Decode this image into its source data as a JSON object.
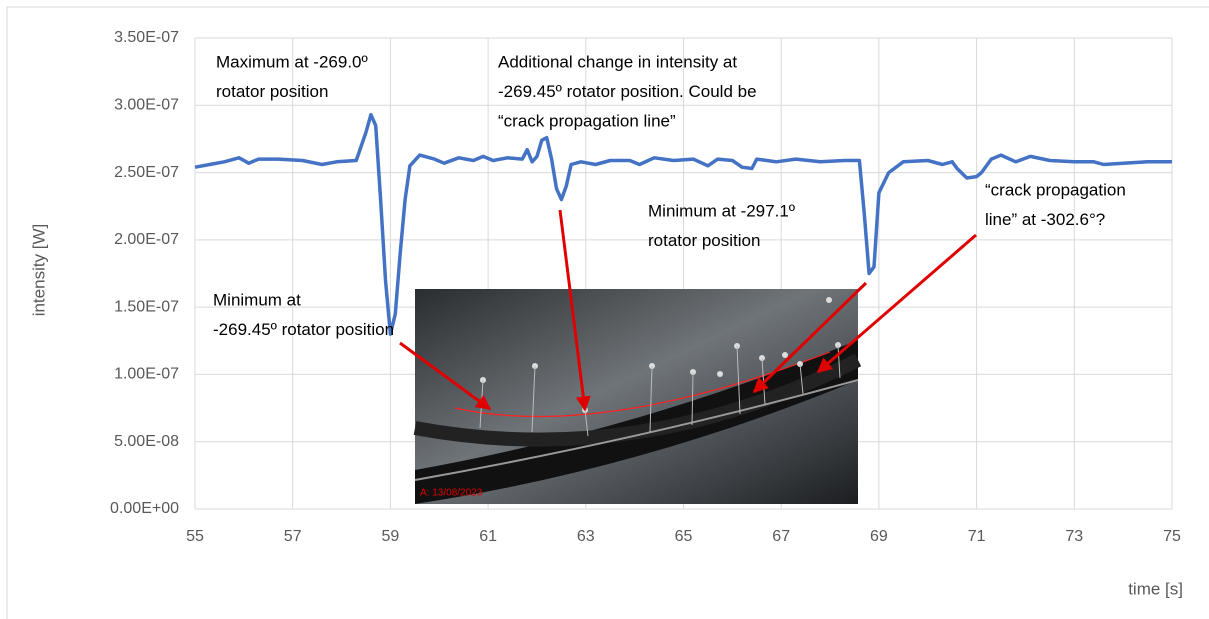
{
  "chart_data": {
    "type": "line",
    "x_label": "time [s]",
    "y_label": "intensity [W]",
    "xlim": [
      55,
      75
    ],
    "xticks": [
      55,
      57,
      59,
      61,
      63,
      65,
      67,
      69,
      71,
      73,
      75
    ],
    "ylim": [
      0,
      3.5e-07
    ],
    "yticks": [
      {
        "value": 0,
        "label": "0.00E+00"
      },
      {
        "value": 5e-08,
        "label": "5.00E-08"
      },
      {
        "value": 1e-07,
        "label": "1.00E-07"
      },
      {
        "value": 1.5e-07,
        "label": "1.50E-07"
      },
      {
        "value": 2e-07,
        "label": "2.00E-07"
      },
      {
        "value": 2.5e-07,
        "label": "2.50E-07"
      },
      {
        "value": 3e-07,
        "label": "3.00E-07"
      },
      {
        "value": 3.5e-07,
        "label": "3.50E-07"
      }
    ],
    "grid": true,
    "series": [
      {
        "color": "#4472c4",
        "x": [
          55,
          55.3,
          55.6,
          55.9,
          56.1,
          56.3,
          56.7,
          57.2,
          57.6,
          57.9,
          58.3,
          58.5,
          58.6,
          58.7,
          58.8,
          58.9,
          59.0,
          59.1,
          59.2,
          59.3,
          59.4,
          59.6,
          59.9,
          60.1,
          60.4,
          60.7,
          60.9,
          61.1,
          61.4,
          61.7,
          61.8,
          61.9,
          62.0,
          62.1,
          62.2,
          62.3,
          62.4,
          62.5,
          62.6,
          62.7,
          62.9,
          63.2,
          63.5,
          63.9,
          64.1,
          64.4,
          64.8,
          65.2,
          65.5,
          65.7,
          66.0,
          66.2,
          66.4,
          66.5,
          66.9,
          67.3,
          67.8,
          68.3,
          68.6,
          68.7,
          68.8,
          68.9,
          69.0,
          69.2,
          69.5,
          70.0,
          70.3,
          70.5,
          70.6,
          70.8,
          71.0,
          71.1,
          71.3,
          71.5,
          71.8,
          72.1,
          72.5,
          73.0,
          73.4,
          73.6,
          74.0,
          74.5,
          75
        ],
        "values": [
          2.54e-07,
          2.56e-07,
          2.58e-07,
          2.61e-07,
          2.57e-07,
          2.6e-07,
          2.6e-07,
          2.59e-07,
          2.56e-07,
          2.58e-07,
          2.59e-07,
          2.8e-07,
          2.93e-07,
          2.85e-07,
          2.3e-07,
          1.7e-07,
          1.3e-07,
          1.45e-07,
          1.9e-07,
          2.3e-07,
          2.55e-07,
          2.63e-07,
          2.6e-07,
          2.57e-07,
          2.61e-07,
          2.59e-07,
          2.62e-07,
          2.59e-07,
          2.61e-07,
          2.6e-07,
          2.67e-07,
          2.58e-07,
          2.62e-07,
          2.74e-07,
          2.76e-07,
          2.6e-07,
          2.38e-07,
          2.3e-07,
          2.4e-07,
          2.56e-07,
          2.58e-07,
          2.56e-07,
          2.59e-07,
          2.59e-07,
          2.56e-07,
          2.61e-07,
          2.59e-07,
          2.6e-07,
          2.55e-07,
          2.6e-07,
          2.59e-07,
          2.54e-07,
          2.53e-07,
          2.6e-07,
          2.58e-07,
          2.6e-07,
          2.58e-07,
          2.59e-07,
          2.59e-07,
          2.2e-07,
          1.75e-07,
          1.8e-07,
          2.35e-07,
          2.5e-07,
          2.58e-07,
          2.59e-07,
          2.56e-07,
          2.58e-07,
          2.53e-07,
          2.46e-07,
          2.47e-07,
          2.5e-07,
          2.6e-07,
          2.63e-07,
          2.58e-07,
          2.62e-07,
          2.59e-07,
          2.58e-07,
          2.58e-07,
          2.56e-07,
          2.57e-07,
          2.58e-07,
          2.58e-07
        ]
      }
    ],
    "annotations": [
      {
        "lines": [
          "Maximum at -269.0º",
          "rotator position"
        ]
      },
      {
        "lines": [
          "Additional change in intensity at",
          "-269.45º rotator position. Could be",
          "“crack propagation line”"
        ]
      },
      {
        "lines": [
          "Minimum at -297.1º",
          "rotator position"
        ]
      },
      {
        "lines": [
          "“crack propagation",
          "line” at -302.6°?"
        ]
      },
      {
        "lines": [
          "Minimum at",
          "-269.45º rotator position"
        ]
      }
    ],
    "inset_label": "A: 13/08/2023"
  }
}
